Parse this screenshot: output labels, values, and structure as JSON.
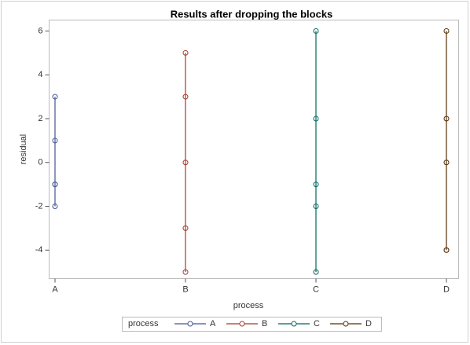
{
  "chart_data": {
    "type": "scatter",
    "title": "Results after dropping the blocks",
    "xlabel": "process",
    "ylabel": "residual",
    "categories": [
      "A",
      "B",
      "C",
      "D"
    ],
    "ylim": [
      -5.3,
      6.5
    ],
    "yticks": [
      -4,
      -2,
      0,
      2,
      4,
      6
    ],
    "legend_title": "process",
    "legend": "bottom",
    "series": [
      {
        "name": "A",
        "color": "#445694",
        "x": [
          "A",
          "A",
          "A",
          "A",
          "A"
        ],
        "values": [
          3,
          1,
          -1,
          -1,
          -2
        ]
      },
      {
        "name": "B",
        "color": "#a23a2e",
        "x": [
          "B",
          "B",
          "B",
          "B",
          "B"
        ],
        "values": [
          5,
          3,
          0,
          -3,
          -5
        ]
      },
      {
        "name": "C",
        "color": "#01665e",
        "x": [
          "C",
          "C",
          "C",
          "C",
          "C"
        ],
        "values": [
          6,
          2,
          -1,
          -2,
          -5
        ]
      },
      {
        "name": "D",
        "color": "#543005",
        "x": [
          "D",
          "D",
          "D",
          "D",
          "D"
        ],
        "values": [
          6,
          2,
          0,
          -4,
          -4
        ]
      }
    ]
  }
}
